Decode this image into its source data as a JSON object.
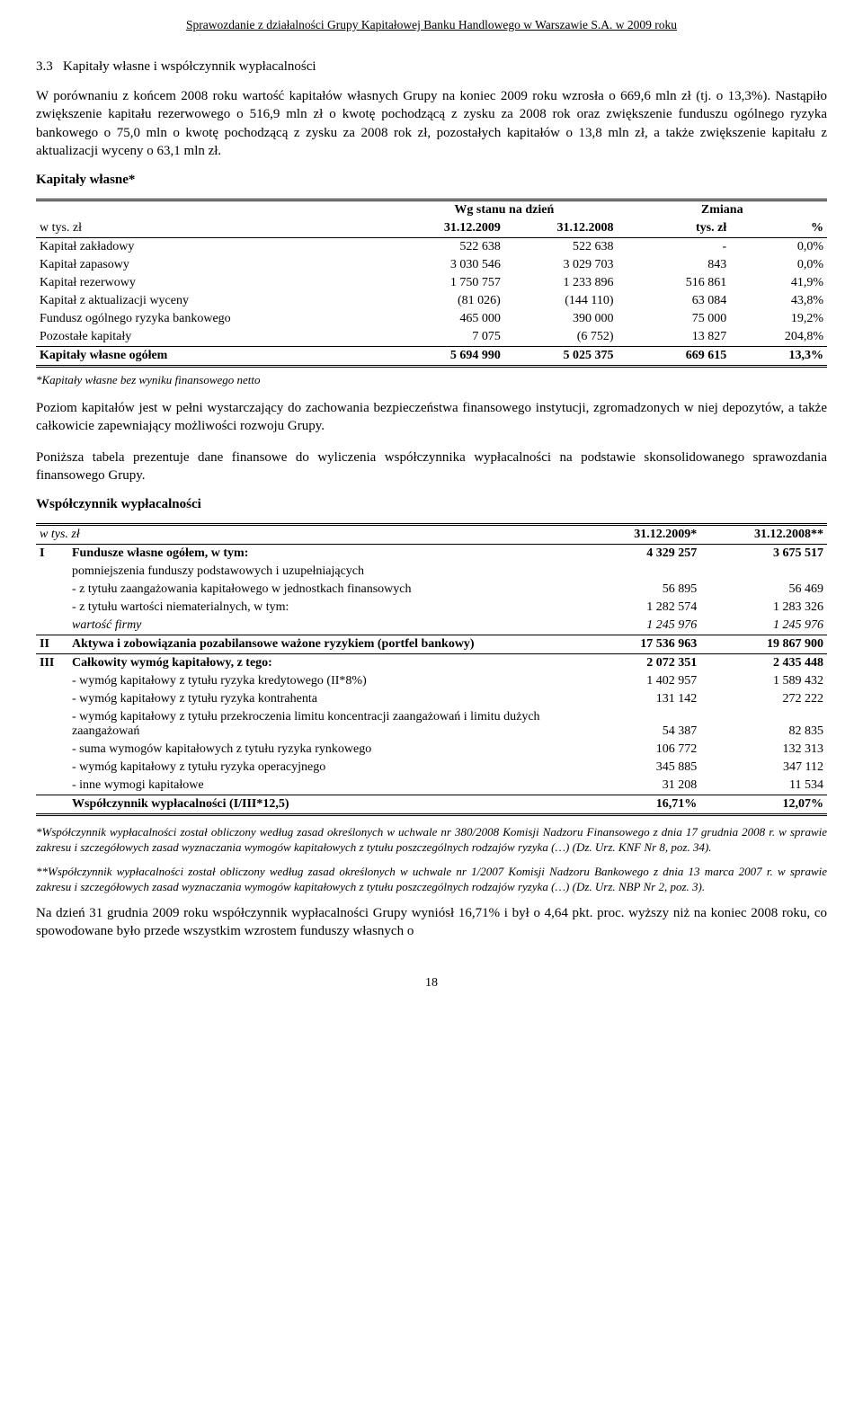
{
  "header": "Sprawozdanie z działalności Grupy Kapitałowej Banku Handlowego w Warszawie S.A. w 2009 roku",
  "section_number": "3.3",
  "section_title": "Kapitały własne i współczynnik wypłacalności",
  "para1": "W porównaniu z końcem 2008 roku wartość kapitałów własnych Grupy na koniec 2009 roku wzrosła o 669,6 mln zł (tj. o 13,3%). Nastąpiło zwiększenie kapitału rezerwowego o 516,9 mln zł o kwotę pochodzącą z zysku za 2008 rok oraz zwiększenie funduszu ogólnego ryzyka bankowego o 75,0 mln o kwotę pochodzącą z zysku za 2008 rok zł, pozostałych kapitałów o 13,8 mln zł, a także zwiększenie kapitału z aktualizacji wyceny o 63,1 mln zł.",
  "table1": {
    "title": "Kapitały własne*",
    "col_header_span": "Wg stanu na dzień",
    "col_header_change": "Zmiana",
    "row_header_label": "w tys. zł",
    "col1": "31.12.2009",
    "col2": "31.12.2008",
    "col3": "tys. zł",
    "col4": "%",
    "rows": [
      {
        "label": "Kapitał zakładowy",
        "v1": "522 638",
        "v2": "522 638",
        "v3": "-",
        "v4": "0,0%"
      },
      {
        "label": "Kapitał zapasowy",
        "v1": "3 030 546",
        "v2": "3 029 703",
        "v3": "843",
        "v4": "0,0%"
      },
      {
        "label": "Kapitał rezerwowy",
        "v1": "1 750 757",
        "v2": "1 233 896",
        "v3": "516 861",
        "v4": "41,9%"
      },
      {
        "label": "Kapitał z aktualizacji wyceny",
        "v1": "(81 026)",
        "v2": "(144 110)",
        "v3": "63 084",
        "v4": "43,8%"
      },
      {
        "label": "Fundusz ogólnego ryzyka bankowego",
        "v1": "465 000",
        "v2": "390 000",
        "v3": "75 000",
        "v4": "19,2%"
      },
      {
        "label": "Pozostałe kapitały",
        "v1": "7 075",
        "v2": "(6 752)",
        "v3": "13 827",
        "v4": "204,8%"
      }
    ],
    "total": {
      "label": "Kapitały własne ogółem",
      "v1": "5 694 990",
      "v2": "5 025 375",
      "v3": "669 615",
      "v4": "13,3%"
    },
    "footnote": "*Kapitały własne bez wyniku finansowego netto"
  },
  "para2": "Poziom kapitałów jest w pełni wystarczający do zachowania bezpieczeństwa finansowego instytucji, zgromadzonych w niej depozytów, a także całkowicie zapewniający możliwości rozwoju Grupy.",
  "para3": "Poniższa tabela prezentuje dane finansowe do wyliczenia współczynnika wypłacalności na podstawie skonsolidowanego sprawozdania finansowego Grupy.",
  "table2": {
    "title": "Współczynnik wypłacalności",
    "row_header_label": "w tys. zł",
    "col1": "31.12.2009*",
    "col2": "31.12.2008**",
    "blocks": [
      {
        "roman": "I",
        "rows": [
          {
            "label": "Fundusze własne ogółem, w tym:",
            "v1": "4 329 257",
            "v2": "3 675 517",
            "bold": true,
            "indent": 0
          },
          {
            "label": "pomniejszenia funduszy podstawowych i uzupełniających",
            "v1": "",
            "v2": "",
            "indent": 0
          },
          {
            "label": "- z tytułu zaangażowania kapitałowego w jednostkach finansowych",
            "v1": "56 895",
            "v2": "56 469",
            "indent": 0
          },
          {
            "label": "- z tytułu wartości niematerialnych, w tym:",
            "v1": "1 282 574",
            "v2": "1 283 326",
            "indent": 0
          },
          {
            "label": "wartość firmy",
            "v1": "1 245 976",
            "v2": "1 245 976",
            "indent": 2,
            "italic": true
          }
        ]
      },
      {
        "roman": "II",
        "rows": [
          {
            "label": "Aktywa i zobowiązania pozabilansowe ważone ryzykiem (portfel bankowy)",
            "v1": "17 536 963",
            "v2": "19 867 900",
            "bold": true,
            "indent": 0
          }
        ]
      },
      {
        "roman": "III",
        "rows": [
          {
            "label": "Całkowity wymóg kapitałowy, z tego:",
            "v1": "2 072 351",
            "v2": "2 435 448",
            "bold": true,
            "indent": 0
          },
          {
            "label": "- wymóg kapitałowy z tytułu ryzyka kredytowego (II*8%)",
            "v1": "1 402 957",
            "v2": "1 589 432",
            "indent": 0
          },
          {
            "label": "- wymóg kapitałowy z tytułu ryzyka kontrahenta",
            "v1": "131 142",
            "v2": "272 222",
            "indent": 0
          },
          {
            "label": "- wymóg kapitałowy z tytułu przekroczenia limitu koncentracji zaangażowań i limitu dużych zaangażowań",
            "v1": "54 387",
            "v2": "82 835",
            "indent": 0
          },
          {
            "label": "- suma wymogów kapitałowych z tytułu ryzyka rynkowego",
            "v1": "106 772",
            "v2": "132 313",
            "indent": 0
          },
          {
            "label": "- wymóg kapitałowy z tytułu ryzyka operacyjnego",
            "v1": "345 885",
            "v2": "347 112",
            "indent": 0
          },
          {
            "label": "- inne wymogi kapitałowe",
            "v1": "31 208",
            "v2": "11 534",
            "indent": 0
          }
        ],
        "total": {
          "label": "Współczynnik wypłacalności  (I/III*12,5)",
          "v1": "16,71%",
          "v2": "12,07%"
        }
      }
    ]
  },
  "note1": "*Współczynnik wypłacalności został obliczony według zasad określonych w uchwale nr 380/2008 Komisji Nadzoru Finansowego z dnia 17 grudnia 2008 r. w sprawie zakresu i szczegółowych zasad wyznaczania wymogów kapitałowych z tytułu poszczególnych rodzajów ryzyka (…) (Dz. Urz. KNF Nr 8, poz. 34).",
  "note2": "**Współczynnik wypłacalności został obliczony według zasad określonych w uchwale nr 1/2007 Komisji Nadzoru Bankowego z dnia 13 marca 2007 r. w sprawie zakresu i szczegółowych zasad wyznaczania wymogów kapitałowych z tytułu poszczególnych rodzajów ryzyka (…) (Dz. Urz. NBP Nr 2, poz. 3).",
  "para4": "Na dzień 31 grudnia 2009 roku współczynnik wypłacalności Grupy wyniósł 16,71% i był o 4,64 pkt. proc. wyższy niż na koniec 2008 roku, co spowodowane było przede wszystkim wzrostem funduszy własnych o",
  "page_number": "18"
}
